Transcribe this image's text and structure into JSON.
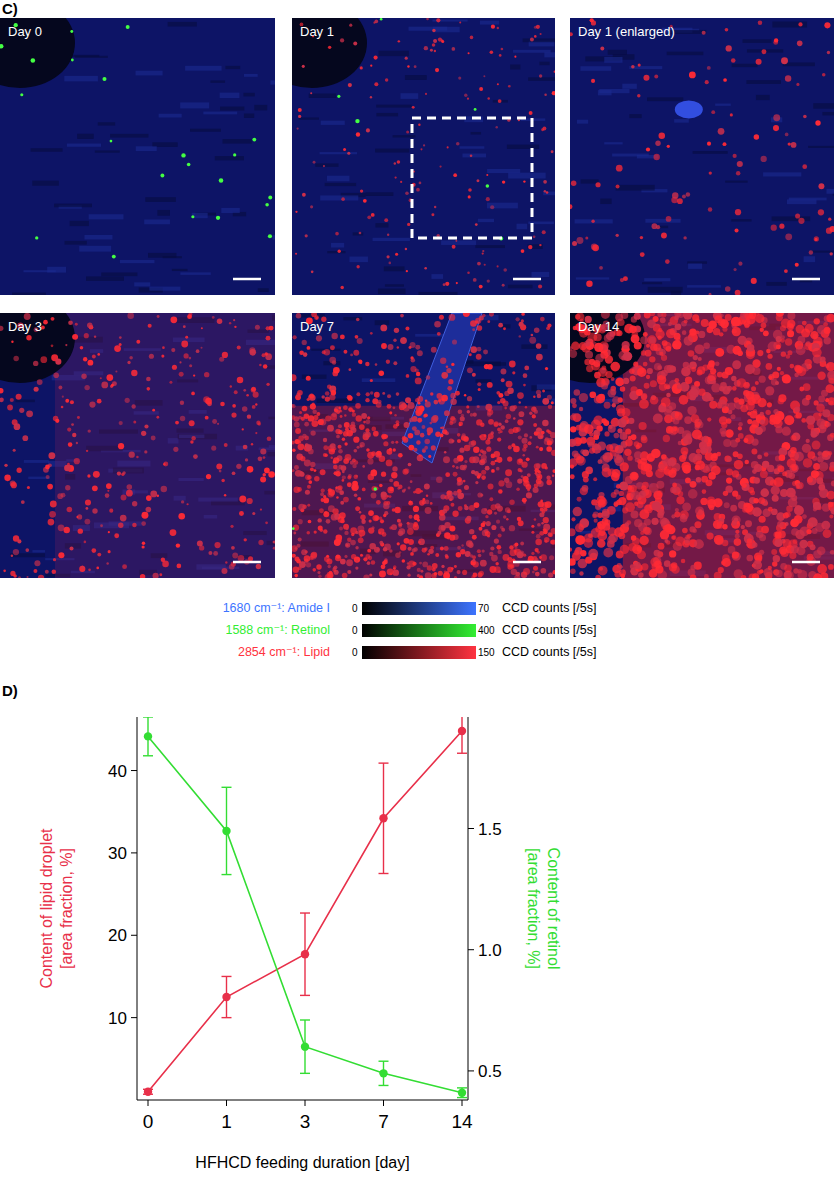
{
  "panel_c": {
    "label": "C)",
    "images": [
      {
        "title": "Day 0"
      },
      {
        "title": "Day 1"
      },
      {
        "title": "Day 1 (enlarged)"
      },
      {
        "title": "Day 3"
      },
      {
        "title": "Day 7"
      },
      {
        "title": "Day 14"
      }
    ],
    "colorbars": [
      {
        "label": "1680 cm⁻¹: Amide I",
        "color": "#3d74ff",
        "min": 0,
        "max": 70,
        "unit": "CCD counts [/5s]"
      },
      {
        "label": "1588 cm⁻¹: Retinol",
        "color": "#33ee33",
        "min": 0,
        "max": 400,
        "unit": "CCD counts [/5s]"
      },
      {
        "label": "2854 cm⁻¹: Lipid",
        "color": "#ff3340",
        "min": 0,
        "max": 150,
        "unit": "CCD counts [/5s]"
      }
    ]
  },
  "chart_data": {
    "type": "line",
    "label": "D)",
    "xlabel": "HFHCD feeding duration [day]",
    "ylabel": [
      "Content of lipid droplet",
      "[area fraction, %]"
    ],
    "y2label": [
      "Content of retinol",
      "[area fraction, %]"
    ],
    "categories": [
      "0",
      "1",
      "3",
      "7",
      "14"
    ],
    "ylim": [
      0,
      46.5
    ],
    "yticks": [
      10,
      20,
      30,
      40
    ],
    "y2lim": [
      0.38,
      1.96
    ],
    "y2ticks": [
      0.5,
      {
        "value": 1,
        "label": "1.0"
      },
      1.5
    ],
    "grid": false,
    "series": [
      {
        "name": "Content of lipid droplet",
        "color": "#e8304a",
        "marker": "circle",
        "line_style": "solid",
        "values": [
          1,
          12.5,
          17.7,
          34.2,
          44.8
        ],
        "errors": [
          0.3,
          2.5,
          5,
          6.7,
          2.7
        ]
      },
      {
        "name": "Content of retinol",
        "color": "#33dd33",
        "marker": "circle",
        "line_style": "solid",
        "axis": "y2",
        "values": [
          1.88,
          1.49,
          0.6,
          0.49,
          0.41
        ],
        "errors": [
          0.08,
          0.18,
          0.11,
          0.05,
          0.02
        ]
      }
    ]
  }
}
